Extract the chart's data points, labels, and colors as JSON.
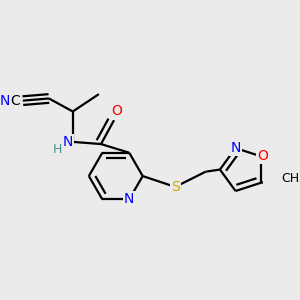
{
  "bg_color": "#ebebeb",
  "atom_colors": {
    "C": "#000000",
    "N": "#0000ff",
    "O": "#ff0000",
    "S": "#ccaa00",
    "H": "#4a9090"
  },
  "figsize": [
    3.0,
    3.0
  ],
  "dpi": 100
}
